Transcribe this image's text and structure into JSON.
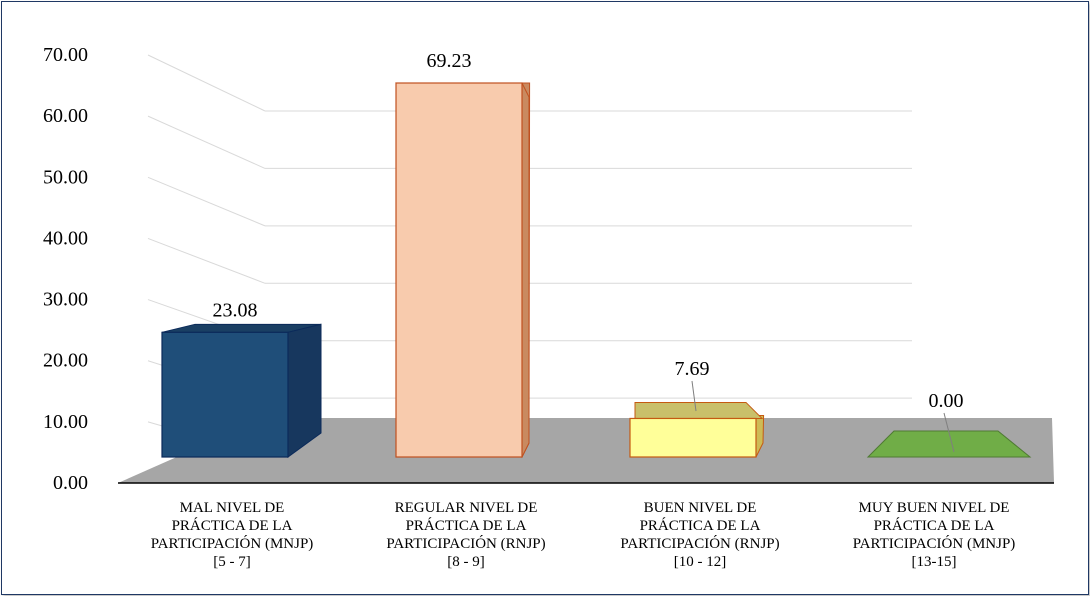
{
  "chart_data": {
    "type": "bar",
    "style": "3d-column",
    "title": "",
    "xlabel": "",
    "ylabel": "",
    "ylim": [
      0,
      70
    ],
    "yticks": [
      "0.00",
      "10.00",
      "20.00",
      "30.00",
      "40.00",
      "50.00",
      "60.00",
      "70.00"
    ],
    "grid": true,
    "legend": "none",
    "categories": [
      [
        "MAL NIVEL DE",
        "PRÁCTICA DE LA",
        "PARTICIPACIÓN (MNJP)",
        "[5 - 7]"
      ],
      [
        "REGULAR NIVEL DE",
        "PRÁCTICA DE LA",
        "PARTICIPACIÓN (RNJP)",
        "[8 - 9]"
      ],
      [
        "BUEN NIVEL DE",
        "PRÁCTICA DE LA",
        "PARTICIPACIÓN (RNJP)",
        "[10 - 12]"
      ],
      [
        "MUY BUEN NIVEL DE",
        "PRÁCTICA DE LA",
        "PARTICIPACIÓN (MNJP)",
        "[13-15]"
      ]
    ],
    "values": [
      23.08,
      69.23,
      7.69,
      0.0
    ],
    "value_labels": [
      "23.08",
      "69.23",
      "7.69",
      "0.00"
    ],
    "colors": {
      "fronts": [
        "#1f4e79",
        "#f8cbad",
        "#ffff99",
        "#70ad47"
      ],
      "tops": [
        "#1a3f63",
        "#f4b183",
        "#c9c06a",
        "#6e9a4c"
      ],
      "sides": [
        "#17375e",
        "#c98a60",
        "#cdbb55",
        "#5a8a3e"
      ],
      "edges": [
        "#0b2a5a",
        "#c0501f",
        "#c55a11",
        "#4f7a33"
      ],
      "floor": "#a6a6a6",
      "grid": "#d9d9d9",
      "frame": "#1f3864"
    }
  }
}
